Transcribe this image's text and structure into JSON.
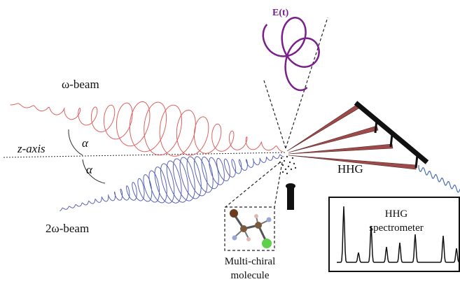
{
  "labels": {
    "omega_beam": "ω-beam",
    "two_omega_beam": "2ω-beam",
    "z_axis": "z-axis",
    "alpha_top": "α",
    "alpha_bottom": "α",
    "field": "E(t)",
    "hhg": "HHG",
    "spectrometer_line1": "HHG",
    "spectrometer_line2": "spectrometer",
    "molecule_line1": "Multi-chiral",
    "molecule_line2": "molecule"
  },
  "colors": {
    "omega_beam": "#e06060",
    "two_omega_beam": "#5a64b8",
    "field_curve": "#7a1f8c",
    "hhg_beam": "#9c4a4a",
    "grating": "#111111",
    "output_wave": "#4a6fb5"
  },
  "icons": {
    "spectrum": "hhg-spectrum-icon",
    "molecule": "chiral-molecule-icon",
    "nozzle": "gas-nozzle-icon",
    "grating": "grating-mirror-icon"
  }
}
